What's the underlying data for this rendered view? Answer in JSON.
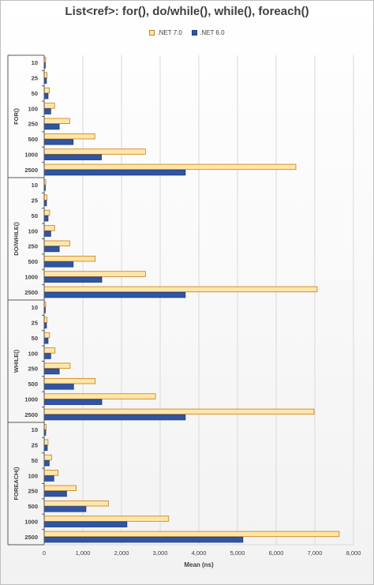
{
  "chart_data": {
    "type": "bar",
    "orientation": "horizontal",
    "title": "List<ref>: for(), do/while(), while(), foreach()",
    "xlabel": "Mean (ns)",
    "ylabel": "",
    "xlim": [
      0,
      8000
    ],
    "x_ticks": [
      "0",
      "1,000",
      "2,000",
      "3,000",
      "4,000",
      "5,000",
      "6,000",
      "7,000",
      "8,000"
    ],
    "grid": true,
    "legend_position": "top",
    "series_names": [
      ".NET 7.0",
      ".NET 6.0"
    ],
    "colors": {
      "net7_fill": "#fde6a8",
      "net7_border": "#c97c1a",
      "net6_fill": "#2f55a4",
      "net6_border": "#1f3f86"
    },
    "groups": [
      {
        "name": "FOR()",
        "categories": [
          "10",
          "25",
          "50",
          "100",
          "250",
          "500",
          "1000",
          "2500"
        ],
        "series": [
          {
            "name": ".NET 7.0",
            "values": [
              40,
              75,
              135,
              270,
              660,
              1310,
              2620,
              6510
            ]
          },
          {
            "name": ".NET 6.0",
            "values": [
              30,
              60,
              100,
              170,
              390,
              750,
              1480,
              3650
            ]
          }
        ]
      },
      {
        "name": "DO/WHILE()",
        "categories": [
          "10",
          "25",
          "50",
          "100",
          "250",
          "500",
          "1000",
          "2500"
        ],
        "series": [
          {
            "name": ".NET 7.0",
            "values": [
              40,
              75,
              140,
              270,
              660,
              1320,
              2620,
              7060
            ]
          },
          {
            "name": ".NET 6.0",
            "values": [
              30,
              60,
              100,
              170,
              390,
              750,
              1490,
              3650
            ]
          }
        ]
      },
      {
        "name": "WHILE()",
        "categories": [
          "10",
          "25",
          "50",
          "100",
          "250",
          "500",
          "1000",
          "2500"
        ],
        "series": [
          {
            "name": ".NET 7.0",
            "values": [
              40,
              75,
              140,
              280,
              670,
              1320,
              2880,
              6980
            ]
          },
          {
            "name": ".NET 6.0",
            "values": [
              30,
              60,
              100,
              170,
              390,
              760,
              1490,
              3650
            ]
          }
        ]
      },
      {
        "name": "FOREACH()",
        "categories": [
          "10",
          "25",
          "50",
          "100",
          "250",
          "500",
          "1000",
          "2500"
        ],
        "series": [
          {
            "name": ".NET 7.0",
            "values": [
              50,
              100,
              190,
              360,
              830,
              1660,
              3220,
              7630
            ]
          },
          {
            "name": ".NET 6.0",
            "values": [
              40,
              80,
              130,
              250,
              580,
              1080,
              2140,
              5140
            ]
          }
        ]
      }
    ]
  }
}
